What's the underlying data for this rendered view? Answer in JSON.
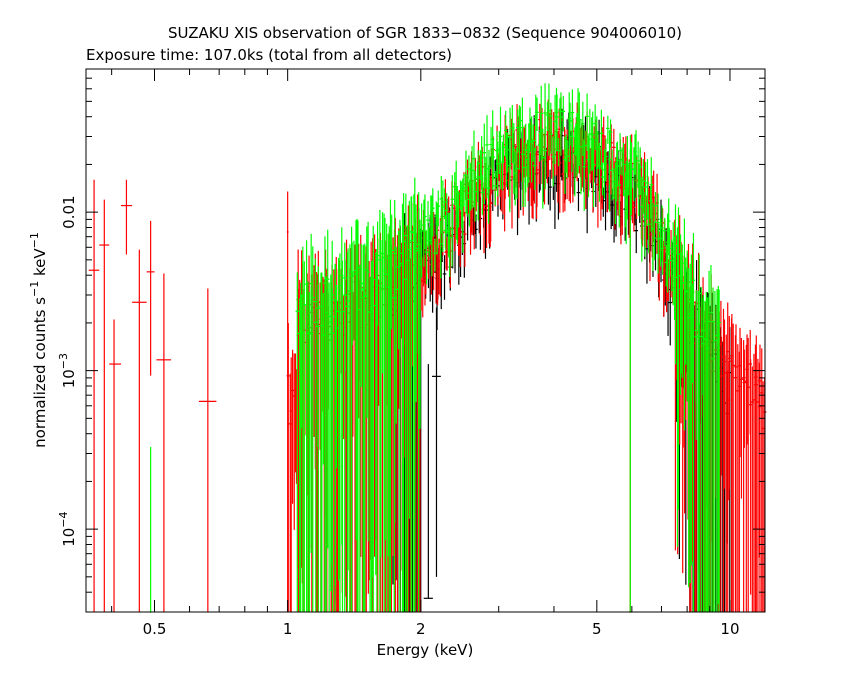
{
  "chart_data": {
    "type": "scatter",
    "title": "SUZAKU XIS observation of SGR 1833−0832 (Sequence 904006010)",
    "subtitle": "Exposure time: 107.0ks (total from all detectors)",
    "xlabel": "Energy (keV)",
    "ylabel": "normalized counts s",
    "ylabel_sup1": "−1",
    "ylabel_mid": " keV",
    "ylabel_sup2": "−1",
    "x_scale": "log",
    "y_scale": "log",
    "xlim": [
      0.35,
      12.0
    ],
    "ylim": [
      3e-05,
      0.08
    ],
    "x_ticks": [
      {
        "value": 0.5,
        "label": "0.5"
      },
      {
        "value": 1,
        "label": "1"
      },
      {
        "value": 2,
        "label": "2"
      },
      {
        "value": 5,
        "label": "5"
      },
      {
        "value": 10,
        "label": "10"
      }
    ],
    "y_ticks": [
      {
        "value": 0.01,
        "base": "0.01",
        "exp": ""
      },
      {
        "value": 0.001,
        "base": "10",
        "exp": "−3"
      },
      {
        "value": 0.0001,
        "base": "10",
        "exp": "−4"
      }
    ],
    "grid": false,
    "series": [
      {
        "color": "#000000",
        "low_points": [
          {
            "x": 2.08,
            "xlo": 2.03,
            "xhi": 2.13,
            "y": 3.66e-05,
            "ylo": 3.66e-05,
            "yhi": 0.0011
          },
          {
            "x": 2.17,
            "xlo": 2.12,
            "xhi": 2.22,
            "y": 0.00092,
            "ylo": 5e-05,
            "yhi": 0.0025
          }
        ]
      },
      {
        "color": "#ff0000",
        "low_points": [
          {
            "x": 0.365,
            "xlo": 0.355,
            "xhi": 0.375,
            "y": 0.0043,
            "ylo": 3e-05,
            "yhi": 0.016
          },
          {
            "x": 0.385,
            "xlo": 0.375,
            "xhi": 0.395,
            "y": 0.0062,
            "ylo": 3e-05,
            "yhi": 0.012
          },
          {
            "x": 0.405,
            "xlo": 0.395,
            "xhi": 0.42,
            "y": 0.0011,
            "ylo": 3e-05,
            "yhi": 0.0021
          },
          {
            "x": 0.432,
            "xlo": 0.42,
            "xhi": 0.445,
            "y": 0.011,
            "ylo": 0.0054,
            "yhi": 0.016
          },
          {
            "x": 0.462,
            "xlo": 0.445,
            "xhi": 0.48,
            "y": 0.0027,
            "ylo": 3e-05,
            "yhi": 0.0058
          },
          {
            "x": 0.49,
            "xlo": 0.48,
            "xhi": 0.5,
            "y": 0.0042,
            "ylo": 0.00093,
            "yhi": 0.0088
          },
          {
            "x": 0.525,
            "xlo": 0.505,
            "xhi": 0.545,
            "y": 0.00117,
            "ylo": 3e-05,
            "yhi": 0.0041
          },
          {
            "x": 0.66,
            "xlo": 0.63,
            "xhi": 0.69,
            "y": 0.00064,
            "ylo": 3e-05,
            "yhi": 0.0033
          },
          {
            "x": 1.0,
            "xlo": 0.995,
            "xhi": 1.005,
            "y": 0.0075,
            "ylo": 3e-05,
            "yhi": 0.0135
          }
        ]
      },
      {
        "color": "#00ff00",
        "low_points": [
          {
            "x": 0.49,
            "xlo": 0.487,
            "xhi": 0.493,
            "y": 3e-05,
            "ylo": 3e-05,
            "yhi": 0.00033
          }
        ]
      }
    ],
    "spectrum_shape": [
      [
        1.05,
        0.0016
      ],
      [
        1.3,
        0.0018
      ],
      [
        1.6,
        0.0025
      ],
      [
        1.9,
        0.0035
      ],
      [
        2.2,
        0.0055
      ],
      [
        2.5,
        0.0085
      ],
      [
        2.8,
        0.0125
      ],
      [
        3.2,
        0.0175
      ],
      [
        3.8,
        0.021
      ],
      [
        4.5,
        0.02
      ],
      [
        5.0,
        0.018
      ],
      [
        5.5,
        0.015
      ],
      [
        6.0,
        0.012
      ],
      [
        6.5,
        0.0085
      ],
      [
        7.0,
        0.0055
      ],
      [
        7.5,
        0.0034
      ],
      [
        8.0,
        0.0021
      ],
      [
        9.0,
        0.0012
      ],
      [
        10.0,
        0.00075
      ],
      [
        12.0,
        0.0005
      ]
    ],
    "series_scale": {
      "#000000": 1.0,
      "#ff0000": 1.25,
      "#00ff00": 1.45
    },
    "series_xrange": {
      "#000000": [
        1.7,
        10.0
      ],
      "#ff0000": [
        1.0,
        12.0
      ],
      "#00ff00": [
        1.05,
        9.5
      ]
    }
  }
}
